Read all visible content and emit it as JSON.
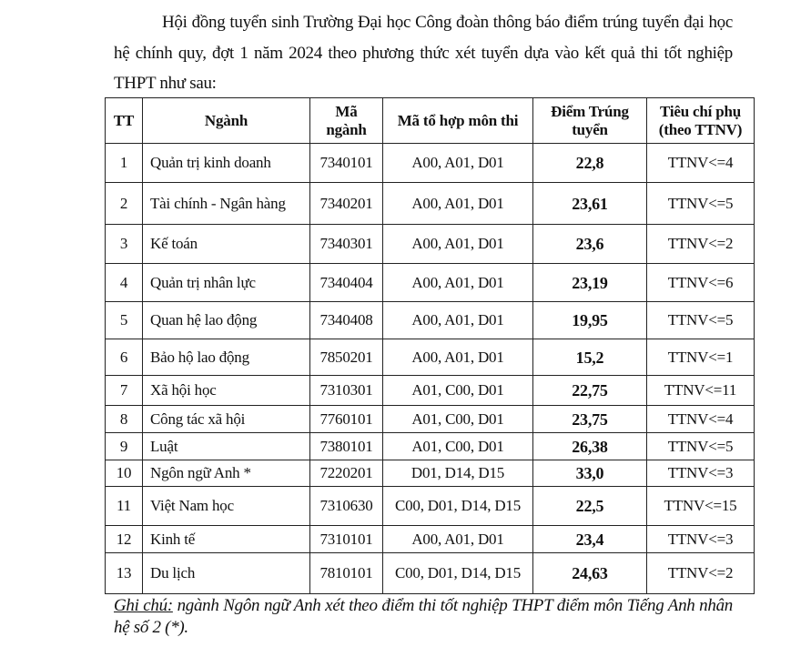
{
  "intro": "Hội đồng tuyển sinh Trường Đại học Công đoàn thông báo điểm trúng tuyển đại học hệ chính quy, đợt 1 năm 2024 theo phương thức xét tuyển dựa vào kết quả thi tốt nghiệp THPT như sau:",
  "table": {
    "headers": [
      "TT",
      "Ngành",
      "Mã ngành",
      "Mã tổ hợp môn thi",
      "Điểm Trúng tuyển",
      "Tiêu chí phụ (theo TTNV)"
    ],
    "rows": [
      [
        "1",
        "Quản trị kinh doanh",
        "7340101",
        "A00, A01, D01",
        "22,8",
        "TTNV<=4"
      ],
      [
        "2",
        "Tài chính - Ngân hàng",
        "7340201",
        "A00, A01, D01",
        "23,61",
        "TTNV<=5"
      ],
      [
        "3",
        "Kế toán",
        "7340301",
        "A00, A01, D01",
        "23,6",
        "TTNV<=2"
      ],
      [
        "4",
        "Quản trị nhân lực",
        "7340404",
        "A00, A01, D01",
        "23,19",
        "TTNV<=6"
      ],
      [
        "5",
        "Quan hệ lao động",
        "7340408",
        "A00, A01, D01",
        "19,95",
        "TTNV<=5"
      ],
      [
        "6",
        "Bảo hộ lao động",
        "7850201",
        "A00, A01, D01",
        "15,2",
        "TTNV<=1"
      ],
      [
        "7",
        "Xã hội học",
        "7310301",
        "A01, C00, D01",
        "22,75",
        "TTNV<=11"
      ],
      [
        "8",
        "Công tác xã hội",
        "7760101",
        "A01, C00, D01",
        "23,75",
        "TTNV<=4"
      ],
      [
        "9",
        "Luật",
        "7380101",
        "A01, C00, D01",
        "26,38",
        "TTNV<=5"
      ],
      [
        "10",
        "Ngôn ngữ Anh *",
        "7220201",
        "D01, D14, D15",
        "33,0",
        "TTNV<=3"
      ],
      [
        "11",
        "Việt Nam học",
        "7310630",
        "C00, D01, D14, D15",
        "22,5",
        "TTNV<=15"
      ],
      [
        "12",
        "Kinh tế",
        "7310101",
        "A00, A01, D01",
        "23,4",
        "TTNV<=3"
      ],
      [
        "13",
        "Du lịch",
        "7810101",
        "C00, D01, D14, D15",
        "24,63",
        "TTNV<=2"
      ]
    ]
  },
  "note": {
    "label": "Ghi chú:",
    "text": " ngành Ngôn ngữ Anh xét theo điểm thi tốt nghiệp THPT điểm môn Tiếng Anh nhân hệ số 2 (*)."
  }
}
